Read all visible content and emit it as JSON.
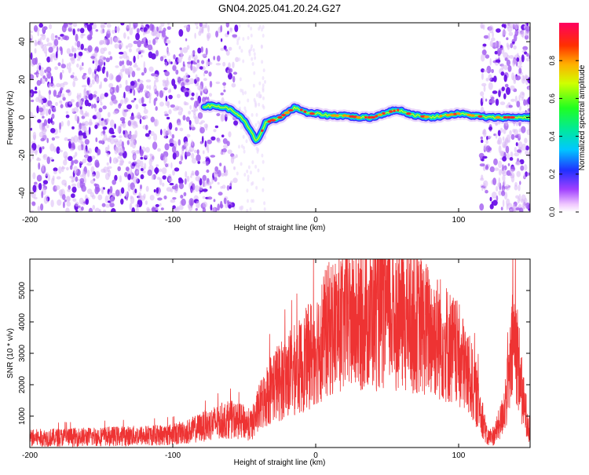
{
  "title": "GN04.2025.041.20.24.G27",
  "chart_data": [
    {
      "type": "heatmap",
      "xlabel": "Height of straight line (km)",
      "ylabel": "Frequency (Hz)",
      "xlim": [
        -200,
        150
      ],
      "ylim": [
        -50,
        50
      ],
      "x_ticks": [
        -200,
        -100,
        0,
        100
      ],
      "y_ticks": [
        -40,
        -20,
        0,
        20,
        40
      ],
      "colorbar": {
        "label": "Normalized spectral amplitude",
        "range": [
          0,
          1
        ],
        "ticks": [
          0,
          0.2,
          0.4,
          0.6,
          0.8
        ]
      },
      "noise_regions_km": [
        [
          -200,
          -55
        ],
        [
          116,
          150
        ]
      ],
      "signal_trace": {
        "x": [
          -78,
          -70,
          -62,
          -55,
          -50,
          -45,
          -42,
          -40,
          -35,
          -25,
          -15,
          -10,
          -5,
          0,
          10,
          20,
          30,
          40,
          47,
          52,
          58,
          65,
          70,
          80,
          90,
          100,
          110,
          120,
          130,
          140,
          150
        ],
        "y": [
          6,
          6,
          5,
          2,
          -2,
          -8,
          -12,
          -11,
          -3,
          0,
          5,
          4,
          2,
          2,
          1,
          1,
          0,
          0,
          2,
          3,
          4,
          2,
          1,
          0,
          1,
          2,
          1,
          0,
          0,
          0,
          0
        ]
      }
    },
    {
      "type": "line",
      "xlabel": "Height of straight line (km)",
      "ylabel": "SNR (10 * v/v)",
      "xlim": [
        -200,
        150
      ],
      "ylim": [
        0,
        6000
      ],
      "x_ticks": [
        -200,
        -100,
        0,
        100
      ],
      "y_ticks": [
        1000,
        2000,
        3000,
        4000,
        5000
      ],
      "color": "#ee3333",
      "envelope": {
        "x": [
          -200,
          -180,
          -160,
          -140,
          -120,
          -100,
          -90,
          -80,
          -70,
          -60,
          -50,
          -45,
          -40,
          -35,
          -30,
          -25,
          -20,
          -10,
          0,
          10,
          20,
          30,
          40,
          50,
          60,
          70,
          80,
          90,
          100,
          105,
          110,
          115,
          118,
          120,
          125,
          130,
          135,
          138,
          140,
          145,
          150
        ],
        "y": [
          300,
          320,
          340,
          360,
          380,
          420,
          500,
          650,
          800,
          900,
          800,
          700,
          1200,
          1600,
          2000,
          2100,
          2300,
          2600,
          3200,
          3800,
          4000,
          4100,
          4200,
          4300,
          4200,
          4000,
          3700,
          3400,
          2900,
          2500,
          2000,
          1300,
          700,
          300,
          400,
          900,
          2000,
          3300,
          3400,
          1500,
          500
        ]
      }
    }
  ]
}
